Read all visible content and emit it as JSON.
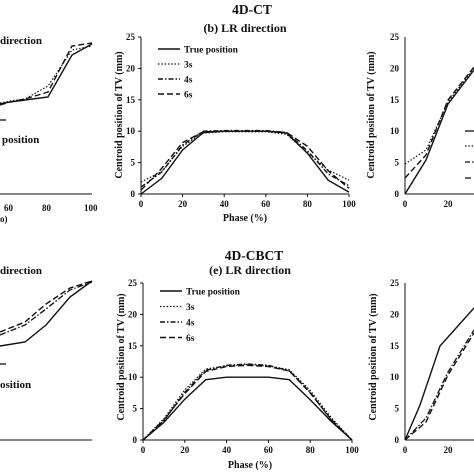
{
  "figure": {
    "top_section_title": "4D-CT",
    "bottom_section_title": "4D-CBCT"
  },
  "partial_text": {
    "top_left_title": "direction",
    "top_left_legend": "position",
    "top_left_xticks": [
      "60",
      "80",
      "100"
    ],
    "top_left_xlabel": "o)",
    "bottom_left_title": "direction",
    "bottom_left_legend": "osition",
    "bottom_right_yticks": [
      "25",
      "20",
      "15",
      "10",
      "5",
      "0"
    ],
    "top_right_yticks": [
      "25",
      "20",
      "15",
      "10",
      "5",
      "0"
    ],
    "top_right_xticks": [
      "0",
      "20"
    ],
    "bottom_right_xticks": [
      "0",
      "20"
    ]
  },
  "chart_data": [
    {
      "type": "line",
      "title": "(b) LR direction",
      "xlabel": "Phase (%)",
      "ylabel": "Centroid position of TV (mm)",
      "xlim": [
        0,
        100
      ],
      "ylim": [
        0,
        25
      ],
      "xticks": [
        "0",
        "20",
        "40",
        "60",
        "80",
        "100"
      ],
      "yticks": [
        "0",
        "5",
        "10",
        "15",
        "20",
        "25"
      ],
      "x": [
        0,
        10,
        20,
        30,
        40,
        50,
        60,
        70,
        80,
        90,
        100
      ],
      "series": [
        {
          "name": "True position",
          "style": "solid",
          "values": [
            0,
            2.5,
            7,
            9.8,
            10,
            10,
            10,
            9.7,
            6.5,
            2.2,
            0.3
          ]
        },
        {
          "name": "3s",
          "style": "dotted",
          "values": [
            1.9,
            3.6,
            7.6,
            9.7,
            9.9,
            9.9,
            9.9,
            9.5,
            6.6,
            3.8,
            2.2
          ]
        },
        {
          "name": "4s",
          "style": "dashdot",
          "values": [
            1.1,
            3.5,
            7.8,
            10,
            10.1,
            10.1,
            10.1,
            9.8,
            6.9,
            3.2,
            1.3
          ]
        },
        {
          "name": "6s",
          "style": "dashed",
          "values": [
            0.6,
            4.1,
            8.2,
            9.9,
            10,
            10,
            10,
            9.8,
            7.6,
            3.7,
            0.9
          ]
        }
      ],
      "legend": "top-left"
    },
    {
      "type": "line",
      "title": "(e) LR direction",
      "xlabel": "Phase (%)",
      "ylabel": "Centroid position of TV (mm)",
      "xlim": [
        0,
        100
      ],
      "ylim": [
        0,
        25
      ],
      "xticks": [
        "0",
        "20",
        "40",
        "60",
        "80",
        "100"
      ],
      "yticks": [
        "0",
        "5",
        "10",
        "15",
        "20",
        "25"
      ],
      "x": [
        0,
        10,
        20,
        30,
        40,
        50,
        60,
        70,
        80,
        90,
        100
      ],
      "series": [
        {
          "name": "True position",
          "style": "solid",
          "values": [
            0,
            2.8,
            6.5,
            9.6,
            10,
            10,
            10,
            9.6,
            6.4,
            3,
            0
          ]
        },
        {
          "name": "3s",
          "style": "dotted",
          "values": [
            0,
            3.4,
            8,
            11.3,
            11.8,
            12,
            11.8,
            11.2,
            7.9,
            3.6,
            0
          ]
        },
        {
          "name": "4s",
          "style": "dashdot",
          "values": [
            0,
            3.1,
            7.6,
            11.1,
            11.9,
            12.1,
            11.9,
            11,
            7.6,
            3.2,
            0
          ]
        },
        {
          "name": "6s",
          "style": "dashed",
          "values": [
            0,
            3.2,
            7.4,
            10.9,
            11.7,
            11.9,
            11.7,
            11,
            7.5,
            3.3,
            0
          ]
        }
      ],
      "legend": "top-left"
    }
  ]
}
